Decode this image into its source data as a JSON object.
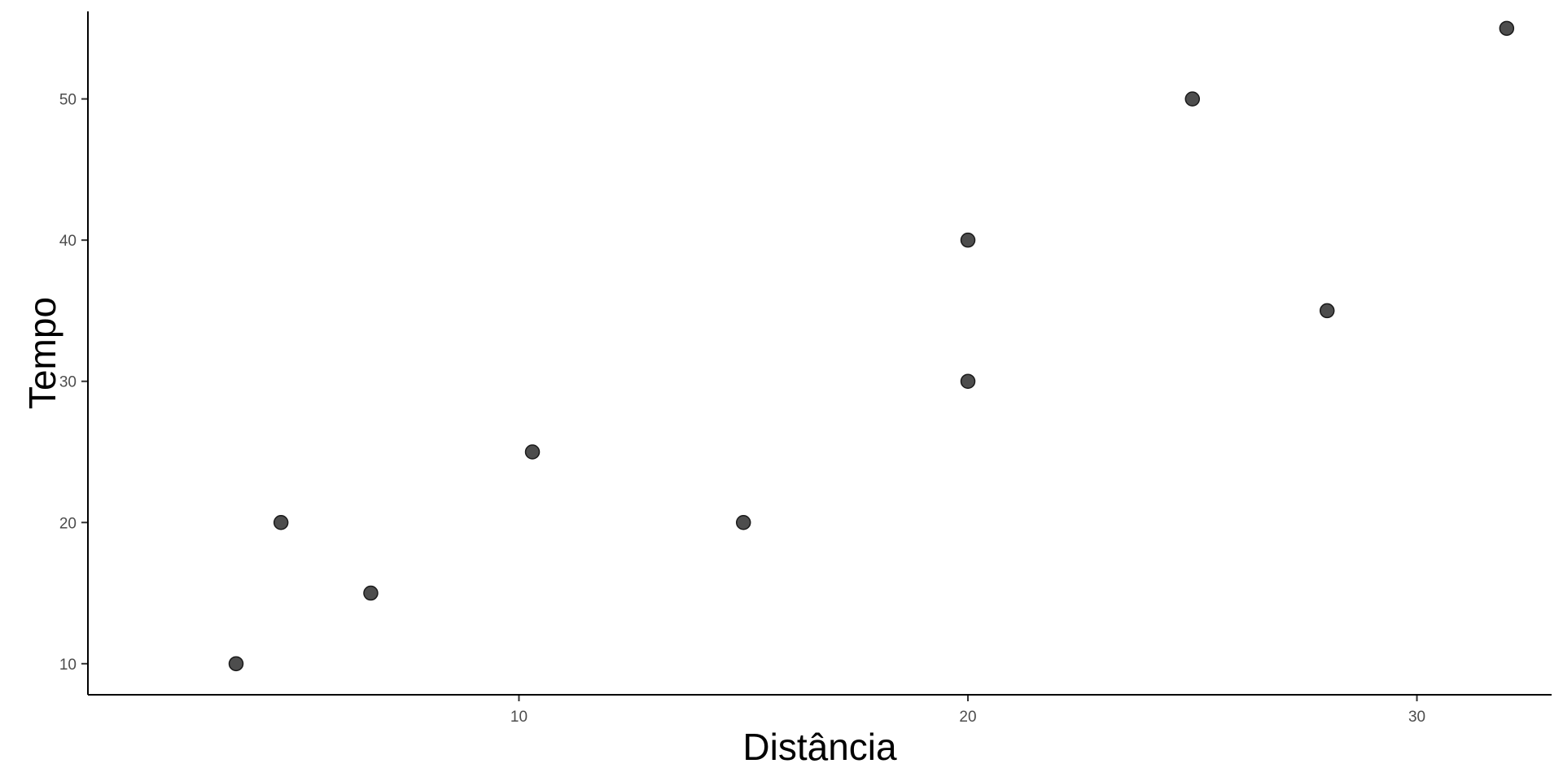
{
  "chart_data": {
    "type": "scatter",
    "title": "",
    "xlabel": "Distância",
    "ylabel": "Tempo",
    "x": [
      3.7,
      4.7,
      6.7,
      10.3,
      15.0,
      20.0,
      20.0,
      25.0,
      28.0,
      32.0
    ],
    "y": [
      10,
      20,
      15,
      25,
      20,
      30,
      40,
      50,
      35,
      55
    ],
    "xlim": [
      0.4,
      33.0
    ],
    "ylim": [
      7.8,
      56.2
    ],
    "xticks": [
      10,
      20,
      30
    ],
    "yticks": [
      10,
      20,
      30,
      40,
      50
    ],
    "xtick_labels": [
      "10",
      "20",
      "30"
    ],
    "ytick_labels": [
      "10",
      "20",
      "30",
      "40",
      "50"
    ],
    "grid": false,
    "legend": "none",
    "point_color": "#4d4d4d",
    "point_stroke": "#1a1a1a"
  }
}
